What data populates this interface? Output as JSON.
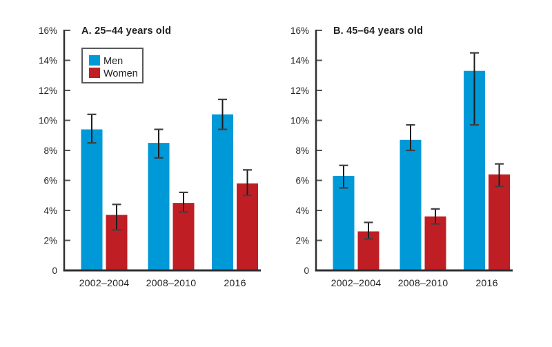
{
  "figure_title": "",
  "chart_data": [
    {
      "type": "bar",
      "title": "A. 25–44 years old",
      "categories": [
        "2002–2004",
        "2008–2010",
        "2016"
      ],
      "series": [
        {
          "name": "Men",
          "color": "#0099d8",
          "values": [
            9.4,
            8.5,
            10.4
          ],
          "ci_low": [
            8.5,
            7.5,
            9.4
          ],
          "ci_high": [
            10.4,
            9.4,
            11.4
          ]
        },
        {
          "name": "Women",
          "color": "#c01e25",
          "values": [
            3.7,
            4.5,
            5.8
          ],
          "ci_low": [
            2.7,
            3.9,
            5.0
          ],
          "ci_high": [
            4.4,
            5.2,
            6.7
          ]
        }
      ],
      "ylabel": "",
      "xlabel": "",
      "ylim": [
        0,
        16
      ],
      "ytick_step": 2,
      "ytick_labels": [
        "0",
        "2%",
        "4%",
        "6%",
        "8%",
        "10%",
        "12%",
        "14%",
        "16%"
      ],
      "grid": false,
      "error_bars": true,
      "legend": {
        "visible": true,
        "position": "top-left",
        "entries": [
          "Men",
          "Women"
        ]
      }
    },
    {
      "type": "bar",
      "title": "B. 45–64 years old",
      "categories": [
        "2002–2004",
        "2008–2010",
        "2016"
      ],
      "series": [
        {
          "name": "Men",
          "color": "#0099d8",
          "values": [
            6.3,
            8.7,
            13.3
          ],
          "ci_low": [
            5.5,
            8.0,
            9.7
          ],
          "ci_high": [
            7.0,
            9.7,
            14.5
          ]
        },
        {
          "name": "Women",
          "color": "#c01e25",
          "values": [
            2.6,
            3.6,
            6.4
          ],
          "ci_low": [
            2.1,
            3.1,
            5.6
          ],
          "ci_high": [
            3.2,
            4.1,
            7.1
          ]
        }
      ],
      "ylabel": "",
      "xlabel": "",
      "ylim": [
        0,
        16
      ],
      "ytick_step": 2,
      "ytick_labels": [
        "0",
        "2%",
        "4%",
        "6%",
        "8%",
        "10%",
        "12%",
        "14%",
        "16%"
      ],
      "grid": false,
      "error_bars": true,
      "legend": {
        "visible": false,
        "position": null,
        "entries": []
      }
    }
  ],
  "colors": {
    "men": "#0099d8",
    "women": "#c01e25",
    "axis": "#2f2f31",
    "tick": "#55565a",
    "text": "#231f20",
    "legend_border": "#58595b",
    "whisker": "#1c1c1e",
    "whisker_cap": "#3f4042"
  }
}
